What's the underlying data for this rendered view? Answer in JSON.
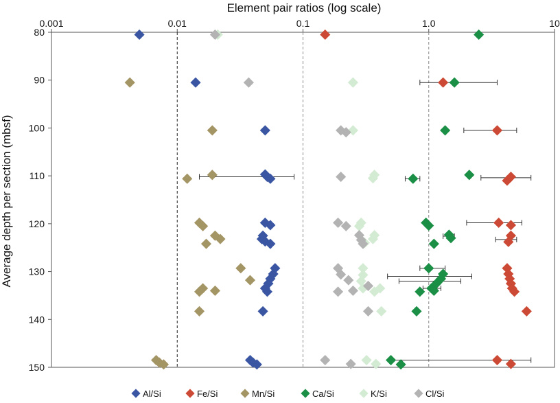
{
  "chart_data": {
    "type": "scatter",
    "title": "Element pair ratios (log scale)",
    "ylabel": "Average depth per section (mbsf)",
    "xscale": "log",
    "xlim": [
      0.001,
      10
    ],
    "ylim": [
      150,
      80
    ],
    "x_tick_labels": [
      "0.001",
      "0.01",
      "0.1",
      "1.0",
      "10"
    ],
    "x_tick_values": [
      0.001,
      0.01,
      0.1,
      1,
      10
    ],
    "y_ticks": [
      80,
      90,
      100,
      110,
      120,
      130,
      140,
      150
    ],
    "reference_lines": [
      {
        "x": 0.01,
        "style": "dashed",
        "color": "#222222"
      },
      {
        "x": 0.1,
        "style": "dashed",
        "color": "#888888"
      },
      {
        "x": 1,
        "style": "dashed",
        "color": "#888888"
      }
    ],
    "legend_position": "bottom",
    "series": [
      {
        "name": "Al/Si",
        "color": "#3a56a3",
        "points": [
          [
            0.005,
            80.5
          ],
          [
            0.014,
            90.5
          ],
          [
            0.05,
            100.5
          ],
          [
            0.05,
            109.7
          ],
          [
            0.052,
            110.2
          ],
          [
            0.055,
            110.6
          ],
          [
            0.05,
            119.8
          ],
          [
            0.055,
            120.3
          ],
          [
            0.048,
            122.5
          ],
          [
            0.047,
            123.2
          ],
          [
            0.05,
            123.7
          ],
          [
            0.055,
            124.2
          ],
          [
            0.06,
            129.3
          ],
          [
            0.058,
            130.5
          ],
          [
            0.055,
            131.5
          ],
          [
            0.053,
            132.5
          ],
          [
            0.05,
            133.5
          ],
          [
            0.052,
            134.2
          ],
          [
            0.048,
            138.3
          ],
          [
            0.038,
            148.5
          ],
          [
            0.04,
            149
          ],
          [
            0.043,
            149.4
          ]
        ]
      },
      {
        "name": "Fe/Si",
        "color": "#cc4a35",
        "points": [
          [
            0.15,
            80.5
          ],
          [
            1.3,
            90.5
          ],
          [
            3.5,
            100.5
          ],
          [
            4.5,
            110.2
          ],
          [
            4.2,
            111
          ],
          [
            3.6,
            119.8
          ],
          [
            4.5,
            120.3
          ],
          [
            4.5,
            122.5
          ],
          [
            4.3,
            123.8
          ],
          [
            4.2,
            129.3
          ],
          [
            4.3,
            130.5
          ],
          [
            4.4,
            131.5
          ],
          [
            4.5,
            132.5
          ],
          [
            4.6,
            133.5
          ],
          [
            4.8,
            134.2
          ],
          [
            6,
            138.3
          ],
          [
            3.5,
            148.5
          ],
          [
            4.5,
            149.3
          ]
        ]
      },
      {
        "name": "Mn/Si",
        "color": "#a49565",
        "points": [
          [
            0.0042,
            90.5
          ],
          [
            0.019,
            100.5
          ],
          [
            0.019,
            109.8
          ],
          [
            0.012,
            110.6
          ],
          [
            0.015,
            119.8
          ],
          [
            0.016,
            120.5
          ],
          [
            0.02,
            122.5
          ],
          [
            0.022,
            123.2
          ],
          [
            0.017,
            124.2
          ],
          [
            0.032,
            129.3
          ],
          [
            0.038,
            131.8
          ],
          [
            0.016,
            133.5
          ],
          [
            0.015,
            134.2
          ],
          [
            0.02,
            134
          ],
          [
            0.015,
            138.3
          ],
          [
            0.0068,
            148.5
          ],
          [
            0.0072,
            149
          ],
          [
            0.0078,
            149.4
          ]
        ]
      },
      {
        "name": "Ca/Si",
        "color": "#1a8f45",
        "points": [
          [
            2.5,
            80.5
          ],
          [
            1.6,
            90.5
          ],
          [
            1.35,
            100.5
          ],
          [
            2.1,
            109.8
          ],
          [
            0.75,
            110.6
          ],
          [
            0.95,
            119.8
          ],
          [
            1.0,
            120.4
          ],
          [
            1.45,
            122.3
          ],
          [
            1.5,
            123
          ],
          [
            1.1,
            124.2
          ],
          [
            1.0,
            129.3
          ],
          [
            1.3,
            130.5
          ],
          [
            1.25,
            131.5
          ],
          [
            1.15,
            132.5
          ],
          [
            1.05,
            133.5
          ],
          [
            1.1,
            134
          ],
          [
            0.85,
            134.2
          ],
          [
            0.8,
            138.3
          ],
          [
            0.5,
            148.5
          ],
          [
            0.6,
            149.4
          ]
        ]
      },
      {
        "name": "K/Si",
        "color": "#d2ebd2",
        "points": [
          [
            0.021,
            80.5
          ],
          [
            0.25,
            90.5
          ],
          [
            0.25,
            100.5
          ],
          [
            0.37,
            109.8
          ],
          [
            0.36,
            110.5
          ],
          [
            0.29,
            119.8
          ],
          [
            0.28,
            120.5
          ],
          [
            0.37,
            122.4
          ],
          [
            0.36,
            123.2
          ],
          [
            0.31,
            124
          ],
          [
            0.3,
            129.3
          ],
          [
            0.3,
            130.7
          ],
          [
            0.29,
            132
          ],
          [
            0.3,
            133.5
          ],
          [
            0.41,
            133.5
          ],
          [
            0.37,
            134.2
          ],
          [
            0.42,
            138.3
          ],
          [
            0.32,
            148.5
          ],
          [
            0.38,
            149.3
          ]
        ]
      },
      {
        "name": "Cl/Si",
        "color": "#b3b3b3",
        "points": [
          [
            0.02,
            80.5
          ],
          [
            0.037,
            90.5
          ],
          [
            0.2,
            100.5
          ],
          [
            0.22,
            100.9
          ],
          [
            0.2,
            110.2
          ],
          [
            0.19,
            119.8
          ],
          [
            0.22,
            120.5
          ],
          [
            0.28,
            122.4
          ],
          [
            0.29,
            123.4
          ],
          [
            0.3,
            124.2
          ],
          [
            0.19,
            129.3
          ],
          [
            0.2,
            130.6
          ],
          [
            0.23,
            131.8
          ],
          [
            0.33,
            133
          ],
          [
            0.25,
            134
          ],
          [
            0.19,
            134.2
          ],
          [
            0.33,
            138.3
          ],
          [
            0.15,
            148.5
          ],
          [
            0.24,
            149.3
          ]
        ]
      }
    ],
    "error_bars": [
      {
        "series": "Fe/Si",
        "depth": 90.5,
        "xmin": 0.85,
        "xmax": 3.5
      },
      {
        "series": "Fe/Si",
        "depth": 100.5,
        "xmin": 1.9,
        "xmax": 5.0
      },
      {
        "series": "Al/Si",
        "depth": 110.2,
        "xmin": 0.015,
        "xmax": 0.085
      },
      {
        "series": "Ca/Si",
        "depth": 110.6,
        "xmin": 0.65,
        "xmax": 0.85
      },
      {
        "series": "Fe/Si",
        "depth": 110.4,
        "xmin": 2.6,
        "xmax": 6.5
      },
      {
        "series": "Fe/Si",
        "depth": 119.8,
        "xmin": 2.0,
        "xmax": 5.5
      },
      {
        "series": "Ca/Si",
        "depth": 122.6,
        "xmin": 1.3,
        "xmax": 1.6
      },
      {
        "series": "Fe/Si",
        "depth": 123.3,
        "xmin": 3.4,
        "xmax": 5.0
      },
      {
        "series": "Ca/Si",
        "depth": 129.3,
        "xmin": 0.85,
        "xmax": 1.35
      },
      {
        "series": "Ca/Si",
        "depth": 131.0,
        "xmin": 0.47,
        "xmax": 2.2
      },
      {
        "series": "Ca/Si",
        "depth": 132.0,
        "xmin": 0.58,
        "xmax": 1.8
      },
      {
        "series": "Ca/Si",
        "depth": 133.5,
        "xmin": 0.9,
        "xmax": 1.25
      },
      {
        "series": "Ca/Si",
        "depth": 148.5,
        "xmin": 0.48,
        "xmax": 6.5
      }
    ]
  }
}
